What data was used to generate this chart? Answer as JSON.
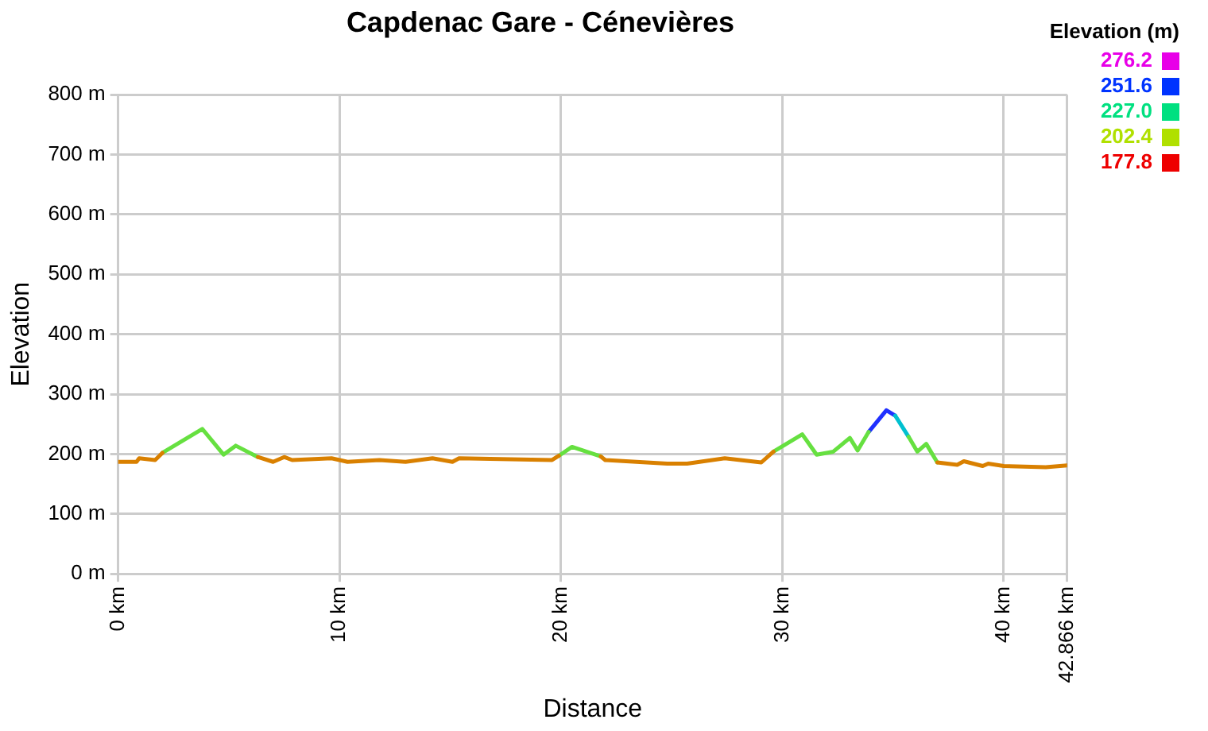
{
  "chart_data": {
    "type": "line",
    "title": "Capdenac Gare - Cénevières",
    "xlabel": "Distance",
    "ylabel": "Elevation",
    "clabel": "Elevation (m)",
    "annotations": [
      "276.2",
      "251.6",
      "227.0",
      "202.4",
      "177.8"
    ],
    "xlim": [
      0,
      42.866
    ],
    "xticks": [
      {
        "value": 0,
        "label": "0 km"
      },
      {
        "value": 10,
        "label": "10 km"
      },
      {
        "value": 20,
        "label": "20 km"
      },
      {
        "value": 30,
        "label": "30 km"
      },
      {
        "value": 40,
        "label": "40 km"
      },
      {
        "value": 42.866,
        "label": "42.866 km"
      }
    ],
    "ylim": [
      0,
      800
    ],
    "yticks": [
      {
        "value": 0,
        "label": "0 m"
      },
      {
        "value": 100,
        "label": "100 m"
      },
      {
        "value": 200,
        "label": "200 m"
      },
      {
        "value": 300,
        "label": "300 m"
      },
      {
        "value": 400,
        "label": "400 m"
      },
      {
        "value": 500,
        "label": "500 m"
      },
      {
        "value": 600,
        "label": "600 m"
      },
      {
        "value": 700,
        "label": "700 m"
      },
      {
        "value": 800,
        "label": "800 m"
      }
    ],
    "grid": true,
    "marker": "none",
    "line_style": "solid",
    "x": [
      0,
      0.83,
      0.95,
      1.67,
      2.0,
      3.8,
      4.76,
      5.31,
      6.31,
      7.0,
      7.5,
      7.86,
      9.64,
      10.36,
      11.8,
      12.98,
      14.2,
      15.1,
      15.4,
      19.6,
      19.9,
      20.5,
      21.8,
      22.0,
      24.8,
      25.7,
      27.4,
      29.05,
      29.6,
      30.9,
      31.55,
      32.3,
      33.05,
      33.4,
      33.9,
      34.7,
      35.1,
      35.7,
      36.1,
      36.5,
      37.0,
      37.9,
      38.2,
      39.05,
      39.3,
      40.0,
      41.9,
      42.866
    ],
    "series": [
      {
        "color": "#d98000",
        "values": [
          187,
          187,
          193,
          190,
          202,
          null,
          null,
          null,
          195,
          187,
          195,
          190,
          193,
          187,
          190,
          187,
          193,
          187,
          193,
          190,
          197,
          null,
          196,
          190,
          184,
          184,
          193,
          186,
          204,
          null,
          null,
          null,
          null,
          null,
          null,
          null,
          null,
          null,
          null,
          null,
          186,
          182,
          188,
          180,
          184,
          180,
          178,
          181
        ]
      },
      {
        "color": "#66e040",
        "values": [
          null,
          null,
          null,
          null,
          202,
          242,
          199,
          214,
          195,
          null,
          null,
          null,
          null,
          null,
          null,
          null,
          null,
          null,
          null,
          null,
          197,
          212,
          196,
          null,
          null,
          null,
          null,
          null,
          204,
          233,
          199,
          204,
          227,
          206,
          237,
          null,
          null,
          229,
          204,
          217,
          186,
          null,
          null,
          null,
          null,
          null,
          null,
          null
        ]
      },
      {
        "color": "#00c0d0",
        "values": [
          null,
          null,
          null,
          null,
          null,
          null,
          null,
          null,
          null,
          null,
          null,
          null,
          null,
          null,
          null,
          null,
          null,
          null,
          null,
          null,
          null,
          null,
          null,
          null,
          null,
          null,
          null,
          null,
          null,
          null,
          null,
          null,
          null,
          null,
          null,
          null,
          264,
          229,
          null,
          null,
          null,
          null,
          null,
          null,
          null,
          null,
          null,
          null
        ]
      },
      {
        "color": "#2030ff",
        "values": [
          null,
          null,
          null,
          null,
          null,
          null,
          null,
          null,
          null,
          null,
          null,
          null,
          null,
          null,
          null,
          null,
          null,
          null,
          null,
          null,
          null,
          null,
          null,
          null,
          null,
          null,
          null,
          null,
          null,
          null,
          null,
          null,
          null,
          null,
          237,
          273,
          264,
          null,
          null,
          null,
          null,
          null,
          null,
          null,
          null,
          null,
          null,
          null
        ]
      }
    ]
  }
}
